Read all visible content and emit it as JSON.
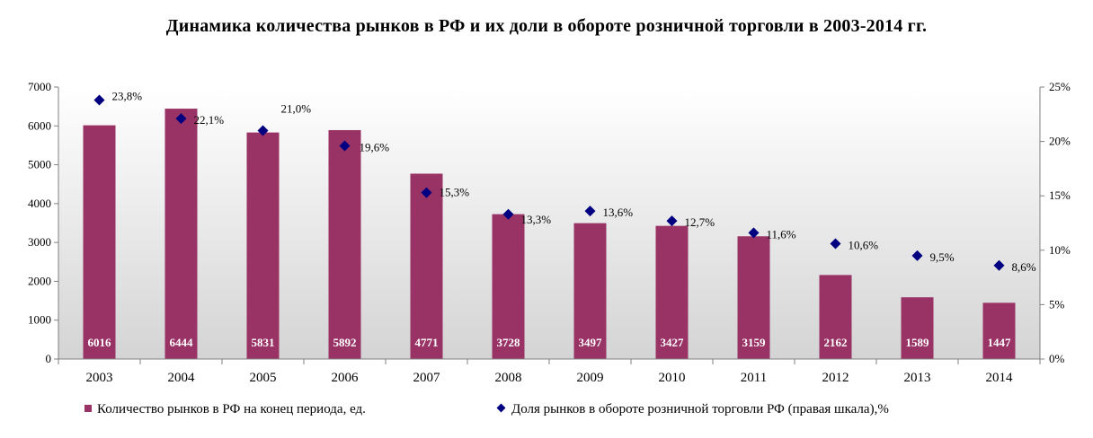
{
  "chart_data": {
    "type": "bar",
    "title": "Динамика  количества  рынков  в  РФ и их доли в обороте  розничной  торговли  в 2003-2014 гг.",
    "categories": [
      "2003",
      "2004",
      "2005",
      "2006",
      "2007",
      "2008",
      "2009",
      "2010",
      "2011",
      "2012",
      "2013",
      "2014"
    ],
    "series": [
      {
        "name": "Количество рынков в РФ на конец периода, ед.",
        "kind": "bar",
        "axis": "left",
        "color": "#993366",
        "values": [
          6016,
          6444,
          5831,
          5892,
          4771,
          3728,
          3497,
          3427,
          3159,
          2162,
          1589,
          1447
        ],
        "labels": [
          "6016",
          "6444",
          "5831",
          "5892",
          "4771",
          "3728",
          "3497",
          "3427",
          "3159",
          "2162",
          "1589",
          "1447"
        ]
      },
      {
        "name": "Доля рынков в обороте розничной торговли РФ (правая шкала),%",
        "kind": "scatter",
        "axis": "right",
        "color": "#000080",
        "values": [
          23.8,
          22.1,
          21.0,
          19.6,
          15.3,
          13.3,
          13.6,
          12.7,
          11.6,
          10.6,
          9.5,
          8.6
        ],
        "labels": [
          "23,8%",
          "22,1%",
          "21,0%",
          "19,6%",
          "15,3%",
          "13,3%",
          "13,6%",
          "12,7%",
          "11,6%",
          "10,6%",
          "9,5%",
          "8,6%"
        ]
      }
    ],
    "y_left": {
      "range": [
        0,
        7000
      ],
      "ticks": [
        "0",
        "1000",
        "2000",
        "3000",
        "4000",
        "5000",
        "6000",
        "7000"
      ]
    },
    "y_right": {
      "range": [
        0,
        25
      ],
      "ticks": [
        "0%",
        "5%",
        "10%",
        "15%",
        "20%",
        "25%"
      ]
    },
    "legend_placement": "bottom",
    "grid": false
  }
}
